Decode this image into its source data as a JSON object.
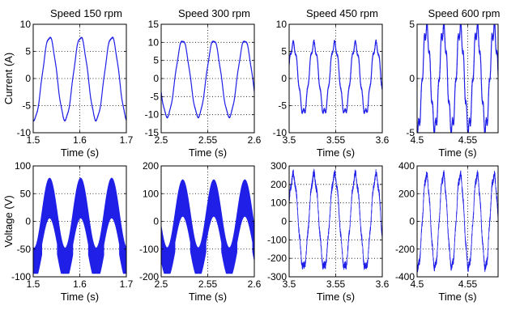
{
  "chart_data": [
    {
      "type": "line",
      "row": 0,
      "col": 0,
      "title": "Speed 150 rpm",
      "ylabel": "Current (A)",
      "xlabel": "Time (s)",
      "xlim": [
        1.5,
        1.7
      ],
      "ylim": [
        -10,
        10
      ],
      "xticks": [
        "1.5",
        "1.6",
        "1.7"
      ],
      "yticks": [
        "10",
        "5",
        "0",
        "-5",
        "-10"
      ],
      "xtick_values": [
        1.5,
        1.6,
        1.7
      ],
      "ytick_values": [
        10,
        5,
        0,
        -5,
        -10
      ],
      "series": [
        {
          "amplitude": 7.6,
          "frequency_hz": 15,
          "phase_deg": -100,
          "ripple_pct": 0.03,
          "noise_pct": 0.01
        }
      ]
    },
    {
      "type": "line",
      "row": 0,
      "col": 1,
      "title": "Speed 300 rpm",
      "xlabel": "Time (s)",
      "xlim": [
        2.5,
        2.6
      ],
      "ylim": [
        -15,
        15
      ],
      "xticks": [
        "2.5",
        "2.55",
        "2.6"
      ],
      "yticks": [
        "15",
        "10",
        "5",
        "0",
        "-5",
        "-10",
        "-15"
      ],
      "xtick_values": [
        2.5,
        2.55,
        2.6
      ],
      "ytick_values": [
        15,
        10,
        5,
        0,
        -5,
        -10,
        -15
      ],
      "series": [
        {
          "amplitude": 10.5,
          "frequency_hz": 30,
          "phase_deg": 200,
          "ripple_pct": 0.03,
          "noise_pct": 0.01
        }
      ]
    },
    {
      "type": "line",
      "row": 0,
      "col": 2,
      "title": "Speed 450 rpm",
      "xlabel": "Time (s)",
      "xlim": [
        3.5,
        3.6
      ],
      "ylim": [
        -10,
        10
      ],
      "xticks": [
        "3.5",
        "3.55",
        "3.6"
      ],
      "yticks": [
        "10",
        "5",
        "0",
        "-5",
        "-10"
      ],
      "xtick_values": [
        3.5,
        3.55,
        3.6
      ],
      "ytick_values": [
        10,
        5,
        0,
        -5,
        -10
      ],
      "series": [
        {
          "amplitude": 6.3,
          "frequency_hz": 45,
          "phase_deg": 20,
          "ripple_pct": 0.1,
          "noise_pct": 0.03
        }
      ]
    },
    {
      "type": "line",
      "row": 0,
      "col": 3,
      "title": "Speed 600 rpm",
      "xlabel": "Time (s)",
      "xlim": [
        4.5,
        4.58
      ],
      "ylim": [
        -5,
        5
      ],
      "xticks": [
        "4.5",
        "4.55"
      ],
      "yticks": [
        "5",
        "0",
        "-5"
      ],
      "xtick_values": [
        4.5,
        4.55
      ],
      "ytick_values": [
        5,
        0,
        -5
      ],
      "series": [
        {
          "amplitude": 4.6,
          "frequency_hz": 60,
          "phase_deg": -110,
          "ripple_pct": 0.15,
          "noise_pct": 0.04
        }
      ]
    },
    {
      "type": "line",
      "row": 1,
      "col": 0,
      "ylabel": "Voltage (V)",
      "xlabel": "Time (s)",
      "xlim": [
        1.5,
        1.7
      ],
      "ylim": [
        -100,
        100
      ],
      "xticks": [
        "1.5",
        "1.6",
        "1.7"
      ],
      "yticks": [
        "100",
        "50",
        "0",
        "-50",
        "-100"
      ],
      "xtick_values": [
        1.5,
        1.6,
        1.7
      ],
      "ytick_values": [
        100,
        50,
        0,
        -50,
        -100
      ],
      "series": [
        {
          "amplitude": 48,
          "frequency_hz": 15,
          "phase_deg": -100,
          "pwm_band": true,
          "offset": -25,
          "band_half_width": 30
        }
      ]
    },
    {
      "type": "line",
      "row": 1,
      "col": 1,
      "xlabel": "Time (s)",
      "xlim": [
        2.5,
        2.6
      ],
      "ylim": [
        -200,
        200
      ],
      "xticks": [
        "2.5",
        "2.55",
        "2.6"
      ],
      "yticks": [
        "200",
        "100",
        "0",
        "-100",
        "-200"
      ],
      "xtick_values": [
        2.5,
        2.55,
        2.6
      ],
      "ytick_values": [
        200,
        100,
        0,
        -100,
        -200
      ],
      "series": [
        {
          "amplitude": 95,
          "frequency_hz": 30,
          "phase_deg": 200,
          "pwm_band": true,
          "offset": -50,
          "band_half_width": 55
        }
      ]
    },
    {
      "type": "line",
      "row": 1,
      "col": 2,
      "xlabel": "Time (s)",
      "xlim": [
        3.5,
        3.6
      ],
      "ylim": [
        -300,
        300
      ],
      "xticks": [
        "3.5",
        "3.55",
        "3.6"
      ],
      "yticks": [
        "300",
        "200",
        "100",
        "0",
        "-100",
        "-200",
        "-300"
      ],
      "xtick_values": [
        3.5,
        3.55,
        3.6
      ],
      "ytick_values": [
        300,
        200,
        100,
        0,
        -100,
        -200,
        -300
      ],
      "series": [
        {
          "amplitude": 250,
          "frequency_hz": 45,
          "phase_deg": 20,
          "ripple_pct": 0.06,
          "noise_pct": 0.08
        }
      ]
    },
    {
      "type": "line",
      "row": 1,
      "col": 3,
      "xlabel": "Time (s)",
      "xlim": [
        4.5,
        4.58
      ],
      "ylim": [
        -400,
        400
      ],
      "xticks": [
        "4.5",
        "4.55"
      ],
      "yticks": [
        "400",
        "200",
        "0",
        "-200",
        "-400"
      ],
      "xtick_values": [
        4.5,
        4.55
      ],
      "ytick_values": [
        400,
        200,
        0,
        -200,
        -400
      ],
      "series": [
        {
          "amplitude": 330,
          "frequency_hz": 60,
          "phase_deg": -110,
          "ripple_pct": 0.06,
          "noise_pct": 0.08
        }
      ]
    }
  ],
  "colors": {
    "line": "#1f1fe8",
    "axes": "#000000"
  }
}
